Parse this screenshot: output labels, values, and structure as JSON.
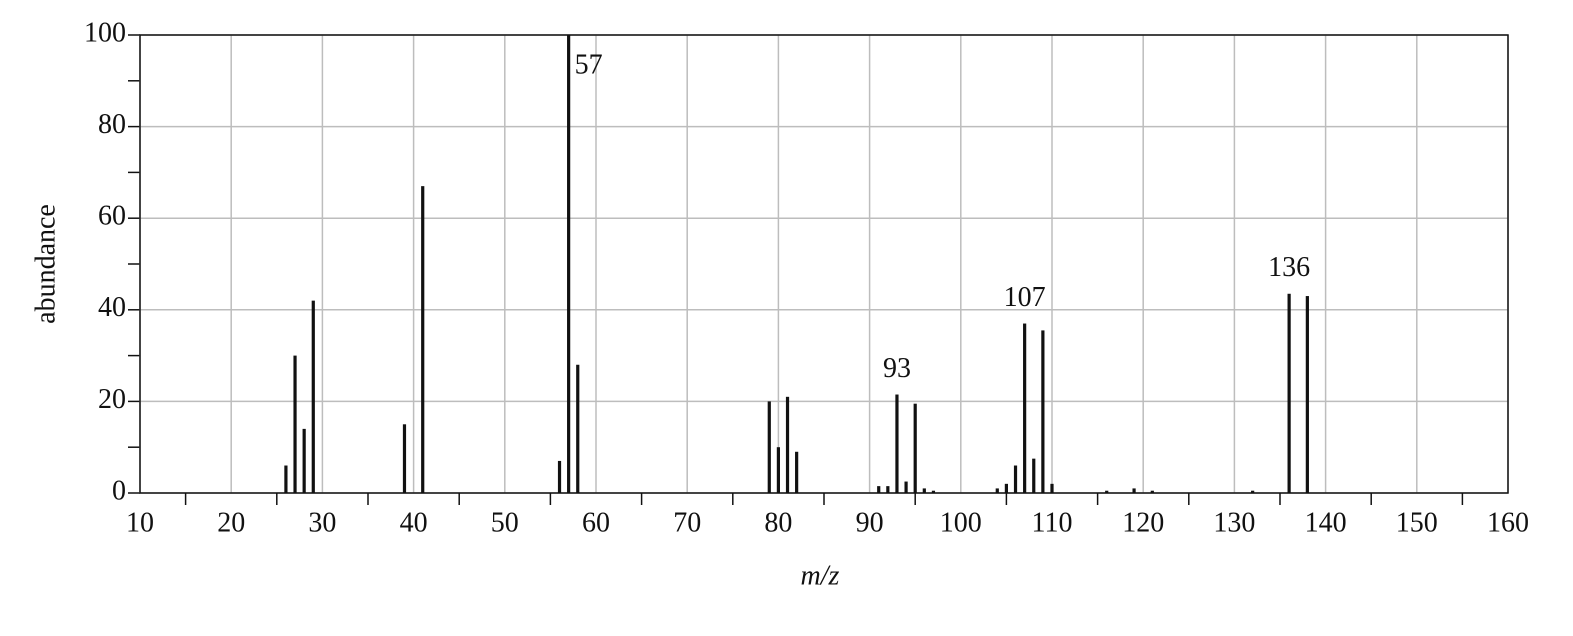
{
  "chart_data": {
    "type": "bar",
    "xlabel": "m/z",
    "ylabel": "abundance",
    "color": "#111111",
    "x": [
      26,
      27,
      28,
      29,
      39,
      41,
      56,
      57,
      58,
      79,
      80,
      81,
      82,
      91,
      92,
      93,
      94,
      95,
      96,
      97,
      104,
      105,
      106,
      107,
      108,
      109,
      110,
      116,
      119,
      121,
      132,
      136,
      138
    ],
    "values": [
      6,
      30,
      14,
      42,
      15,
      67,
      7,
      100,
      28,
      20,
      10,
      21,
      9,
      1.5,
      1.5,
      21.5,
      2.5,
      19.5,
      1,
      0.5,
      1,
      2,
      6,
      37,
      7.5,
      35.5,
      2,
      0.5,
      1,
      0.5,
      0.5,
      43.5,
      43
    ],
    "peak_labels": [
      {
        "label": "57",
        "x": 57
      },
      {
        "label": "93",
        "x": 93
      },
      {
        "label": "107",
        "x": 107
      },
      {
        "label": "136",
        "x": 136
      }
    ],
    "xlim": [
      10,
      160
    ],
    "xticks": [
      10,
      20,
      30,
      40,
      50,
      60,
      70,
      80,
      90,
      100,
      110,
      120,
      130,
      140,
      150,
      160
    ],
    "xminorticks": [
      15,
      25,
      35,
      45,
      55,
      65,
      75,
      85,
      95,
      105,
      115,
      125,
      135,
      145,
      155
    ],
    "ylim": [
      0,
      100
    ],
    "yticks": [
      0,
      20,
      40,
      60,
      80,
      100
    ],
    "yminorticks": [
      10,
      30,
      50,
      70,
      90
    ],
    "grid": true
  }
}
